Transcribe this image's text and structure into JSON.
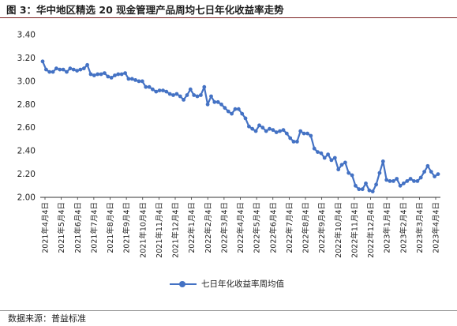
{
  "header": {
    "title": "图 3：华中地区精选 20 现金管理产品周均七日年化收益率走势"
  },
  "footer": {
    "source": "数据来源：普益标准"
  },
  "colors": {
    "series": "#4472C4",
    "axis": "#333333",
    "title_rule": "#7a2020"
  },
  "chart_data": {
    "type": "line",
    "ylim": [
      2.0,
      3.4
    ],
    "yticks": [
      "2.00",
      "2.20",
      "2.40",
      "2.60",
      "2.80",
      "3.00",
      "3.20",
      "3.40"
    ],
    "grid": false,
    "legend": "bottom",
    "xtick_labels": [
      "2021年4月4日",
      "2021年5月4日",
      "2021年6月4日",
      "2021年7月4日",
      "2021年8月4日",
      "2021年9月4日",
      "2021年10月4日",
      "2021年11月4日",
      "2021年12月4日",
      "2022年1月4日",
      "2022年2月4日",
      "2022年3月4日",
      "2022年4月4日",
      "2022年5月4日",
      "2022年6月4日",
      "2022年7月4日",
      "2022年8月4日",
      "2022年9月4日",
      "2022年10月4日",
      "2022年11月4日",
      "2022年12月4日",
      "2023年1月4日",
      "2023年2月4日",
      "2023年3月4日",
      "2023年4月4日"
    ],
    "series": [
      {
        "name": "七日年化收益率周均值",
        "values": [
          3.17,
          3.1,
          3.08,
          3.08,
          3.11,
          3.1,
          3.1,
          3.08,
          3.11,
          3.1,
          3.09,
          3.1,
          3.11,
          3.14,
          3.06,
          3.05,
          3.06,
          3.06,
          3.07,
          3.04,
          3.03,
          3.05,
          3.06,
          3.06,
          3.07,
          3.02,
          3.02,
          3.01,
          3.0,
          3.0,
          2.95,
          2.95,
          2.93,
          2.91,
          2.92,
          2.92,
          2.91,
          2.89,
          2.88,
          2.89,
          2.87,
          2.84,
          2.88,
          2.93,
          2.88,
          2.87,
          2.88,
          2.95,
          2.8,
          2.87,
          2.82,
          2.82,
          2.8,
          2.77,
          2.74,
          2.72,
          2.76,
          2.76,
          2.72,
          2.68,
          2.61,
          2.59,
          2.57,
          2.62,
          2.6,
          2.57,
          2.59,
          2.58,
          2.56,
          2.57,
          2.58,
          2.55,
          2.51,
          2.48,
          2.48,
          2.57,
          2.55,
          2.55,
          2.53,
          2.42,
          2.39,
          2.38,
          2.34,
          2.37,
          2.32,
          2.34,
          2.24,
          2.28,
          2.3,
          2.21,
          2.19,
          2.1,
          2.07,
          2.07,
          2.12,
          2.06,
          2.05,
          2.11,
          2.21,
          2.31,
          2.15,
          2.14,
          2.14,
          2.16,
          2.1,
          2.12,
          2.14,
          2.16,
          2.14,
          2.14,
          2.17,
          2.22,
          2.27,
          2.22,
          2.18,
          2.2
        ]
      }
    ]
  }
}
